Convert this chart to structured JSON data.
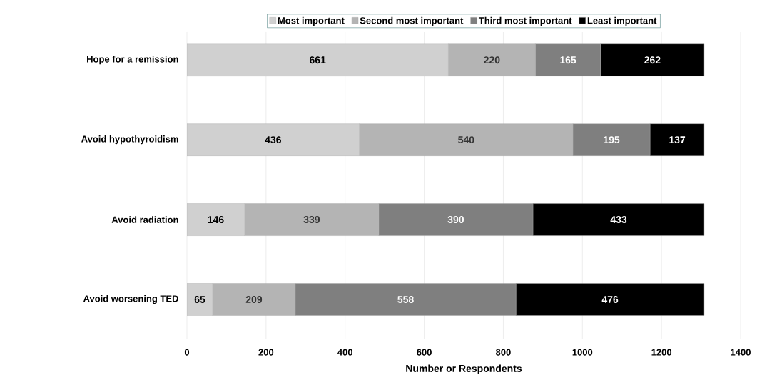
{
  "chart_data": {
    "type": "bar",
    "orientation": "horizontal",
    "stacked": true,
    "data_labels": true,
    "categories": [
      "Hope for a remission",
      "Avoid hypothyroidism",
      "Avoid radiation",
      "Avoid worsening TED"
    ],
    "series": [
      {
        "name": "Most important",
        "color": "#d0d0d0",
        "values": [
          661,
          436,
          146,
          65
        ]
      },
      {
        "name": "Second most important",
        "color": "#b4b4b4",
        "values": [
          220,
          540,
          339,
          209
        ]
      },
      {
        "name": "Third most important",
        "color": "#7f7f7f",
        "values": [
          165,
          195,
          390,
          558
        ]
      },
      {
        "name": "Least important",
        "color": "#000000",
        "values": [
          262,
          137,
          433,
          476
        ]
      }
    ],
    "xlim": [
      0,
      1400
    ],
    "xticks": [
      0,
      200,
      400,
      600,
      800,
      1000,
      1200,
      1400
    ],
    "xlabel": "Number or Respondents",
    "grid": "x",
    "legend": "top"
  }
}
